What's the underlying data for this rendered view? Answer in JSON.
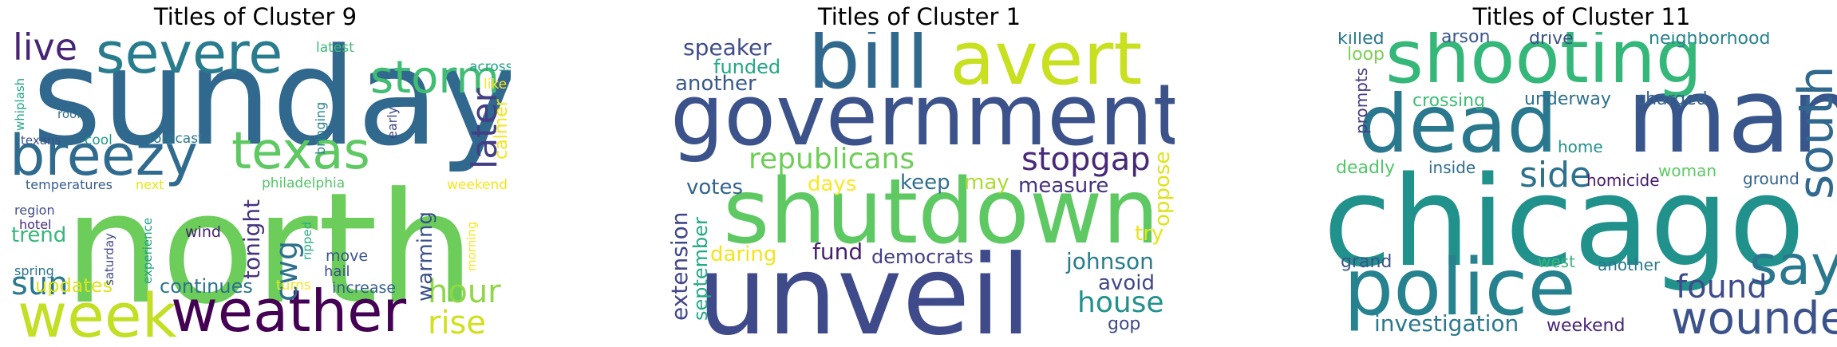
{
  "panels": [
    {
      "title": "Titles of Cluster 9",
      "words": [
        {
          "text": "sunday",
          "color": "#31688e"
        },
        {
          "text": "north",
          "color": "#6ccd5a"
        },
        {
          "text": "severe",
          "color": "#287c8e"
        },
        {
          "text": "breezy",
          "color": "#2f6b8e"
        },
        {
          "text": "texas",
          "color": "#5ec962"
        },
        {
          "text": "storm",
          "color": "#40bd72"
        },
        {
          "text": "live",
          "color": "#482475"
        },
        {
          "text": "later",
          "color": "#433e85"
        },
        {
          "text": "week",
          "color": "#c2df23"
        },
        {
          "text": "weather",
          "color": "#440154"
        },
        {
          "text": "sun",
          "color": "#2a788e"
        },
        {
          "text": "hour",
          "color": "#8fd744"
        },
        {
          "text": "rise",
          "color": "#d0e11c"
        },
        {
          "text": "cwg",
          "color": "#2d708e"
        },
        {
          "text": "warming",
          "color": "#3b528b"
        },
        {
          "text": "tonight",
          "color": "#46327e"
        },
        {
          "text": "calmer",
          "color": "#f1e51d"
        },
        {
          "text": "continues",
          "color": "#2c728e"
        },
        {
          "text": "updates",
          "color": "#dde318"
        },
        {
          "text": "trend",
          "color": "#35b779"
        },
        {
          "text": "latest",
          "color": "#3aba76"
        },
        {
          "text": "across",
          "color": "#20a486"
        },
        {
          "text": "like",
          "color": "#fde725"
        },
        {
          "text": "whiplash",
          "color": "#22a785"
        },
        {
          "text": "roof",
          "color": "#2e6f8e"
        },
        {
          "text": "texans",
          "color": "#3b528b"
        },
        {
          "text": "cool",
          "color": "#1f998a"
        },
        {
          "text": "forecast",
          "color": "#2a778e"
        },
        {
          "text": "bringing",
          "color": "#26828e"
        },
        {
          "text": "early",
          "color": "#404588"
        },
        {
          "text": "temperatures",
          "color": "#365d8d"
        },
        {
          "text": "next",
          "color": "#e7e419"
        },
        {
          "text": "philadelphia",
          "color": "#54c568"
        },
        {
          "text": "weekend",
          "color": "#f4e61e"
        },
        {
          "text": "region",
          "color": "#3e4c8a"
        },
        {
          "text": "hotel",
          "color": "#472d7b"
        },
        {
          "text": "spring",
          "color": "#2a768e"
        },
        {
          "text": "saturday",
          "color": "#3e4989"
        },
        {
          "text": "experience",
          "color": "#1fa187"
        },
        {
          "text": "wind",
          "color": "#482173"
        },
        {
          "text": "ripped",
          "color": "#29af7f"
        },
        {
          "text": "move",
          "color": "#3a548c"
        },
        {
          "text": "hail",
          "color": "#3c4f8a"
        },
        {
          "text": "turns",
          "color": "#f6e620"
        },
        {
          "text": "increase",
          "color": "#355e8d"
        },
        {
          "text": "morning",
          "color": "#f8e621"
        }
      ]
    },
    {
      "title": "Titles of Cluster 1",
      "words": [
        {
          "text": "government",
          "color": "#3b528b"
        },
        {
          "text": "shutdown",
          "color": "#5ec962"
        },
        {
          "text": "unveil",
          "color": "#3e4a89"
        },
        {
          "text": "bill",
          "color": "#31688e"
        },
        {
          "text": "avert",
          "color": "#c8e020"
        },
        {
          "text": "republicans",
          "color": "#6ece58"
        },
        {
          "text": "stopgap",
          "color": "#482878"
        },
        {
          "text": "speaker",
          "color": "#3e4c8a"
        },
        {
          "text": "funded",
          "color": "#22a884"
        },
        {
          "text": "another",
          "color": "#38588c"
        },
        {
          "text": "votes",
          "color": "#32648e"
        },
        {
          "text": "days",
          "color": "#fde725"
        },
        {
          "text": "keep",
          "color": "#2e6e8e"
        },
        {
          "text": "may",
          "color": "#addc30"
        },
        {
          "text": "measure",
          "color": "#46337f"
        },
        {
          "text": "oppose",
          "color": "#dde318"
        },
        {
          "text": "extension",
          "color": "#404688"
        },
        {
          "text": "september",
          "color": "#22a884"
        },
        {
          "text": "daring",
          "color": "#f1e51d"
        },
        {
          "text": "fund",
          "color": "#481f70"
        },
        {
          "text": "democrats",
          "color": "#423f85"
        },
        {
          "text": "johnson",
          "color": "#287c8e"
        },
        {
          "text": "try",
          "color": "#e5e419"
        },
        {
          "text": "avoid",
          "color": "#3f4788"
        },
        {
          "text": "house",
          "color": "#21918c"
        },
        {
          "text": "gop",
          "color": "#3e4a89"
        }
      ]
    },
    {
      "title": "Titles of Cluster 11",
      "words": [
        {
          "text": "chicago",
          "color": "#21918c"
        },
        {
          "text": "man",
          "color": "#39568c"
        },
        {
          "text": "shooting",
          "color": "#35b779"
        },
        {
          "text": "dead",
          "color": "#2a788e"
        },
        {
          "text": "police",
          "color": "#26828e"
        },
        {
          "text": "south",
          "color": "#31688e"
        },
        {
          "text": "say",
          "color": "#2a788e"
        },
        {
          "text": "wounded",
          "color": "#3b528b"
        },
        {
          "text": "side",
          "color": "#2c728e"
        },
        {
          "text": "found",
          "color": "#3e4c8a"
        },
        {
          "text": "investigation",
          "color": "#2a788e"
        },
        {
          "text": "killed",
          "color": "#2a788e"
        },
        {
          "text": "arson",
          "color": "#39568c"
        },
        {
          "text": "drive",
          "color": "#3b528b"
        },
        {
          "text": "neighborhood",
          "color": "#26828e"
        },
        {
          "text": "loop",
          "color": "#7ad151"
        },
        {
          "text": "prompts",
          "color": "#443a83"
        },
        {
          "text": "crossing",
          "color": "#3fbc73"
        },
        {
          "text": "underway",
          "color": "#2d708e"
        },
        {
          "text": "charged",
          "color": "#33638d"
        },
        {
          "text": "home",
          "color": "#21918c"
        },
        {
          "text": "deadly",
          "color": "#52c569"
        },
        {
          "text": "inside",
          "color": "#2e6e8e"
        },
        {
          "text": "homicide",
          "color": "#481c6e"
        },
        {
          "text": "woman",
          "color": "#5ec962"
        },
        {
          "text": "ground",
          "color": "#33638d"
        },
        {
          "text": "grand",
          "color": "#3b528b"
        },
        {
          "text": "west",
          "color": "#35b779"
        },
        {
          "text": "another",
          "color": "#2a788e"
        },
        {
          "text": "weekend",
          "color": "#482677"
        }
      ]
    }
  ]
}
